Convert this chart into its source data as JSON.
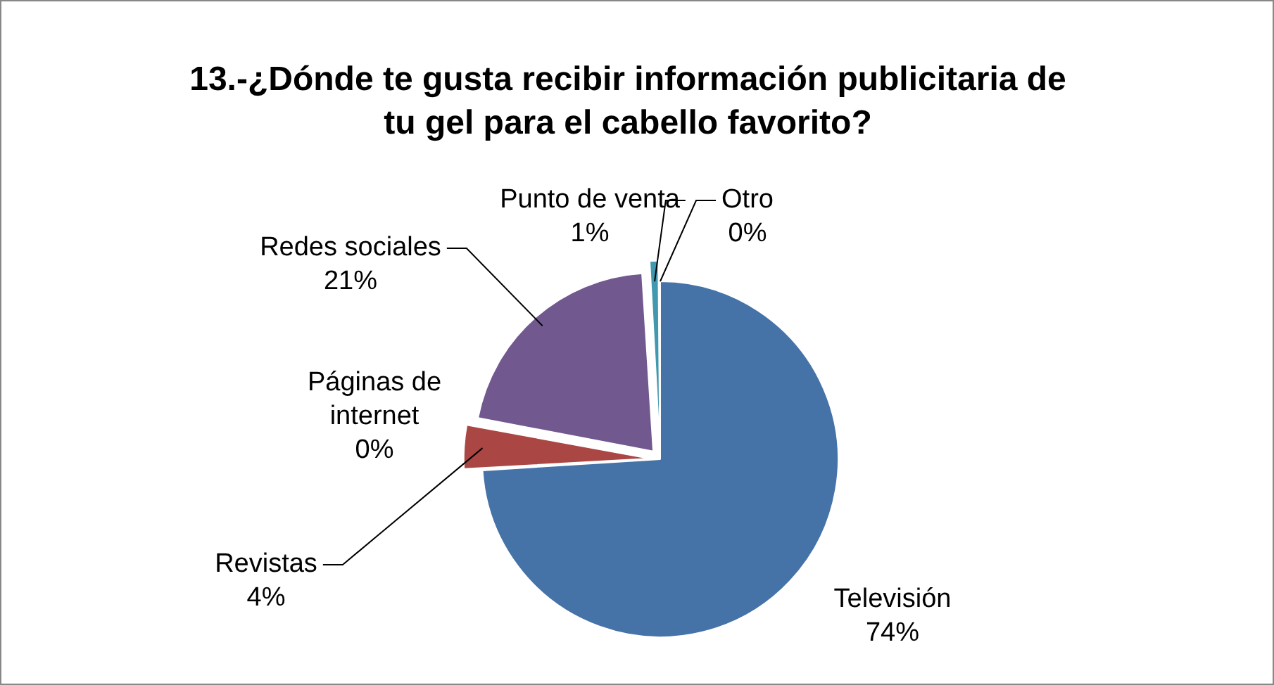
{
  "chart_data": {
    "type": "pie",
    "title": "13.-¿Dónde te gusta recibir información publicitaria de tu gel para el cabello favorito?",
    "categories": [
      "Televisión",
      "Revistas",
      "Páginas de internet",
      "Redes sociales",
      "Punto de venta",
      "Otro"
    ],
    "values": [
      74,
      4,
      0,
      21,
      1,
      0
    ],
    "colors": [
      "#4572a7",
      "#aa4643",
      "#89a54e",
      "#71588f",
      "#4198af",
      "#db843d"
    ],
    "value_labels": [
      "74%",
      "4%",
      "0%",
      "21%",
      "1%",
      "0%"
    ],
    "legend": false
  }
}
